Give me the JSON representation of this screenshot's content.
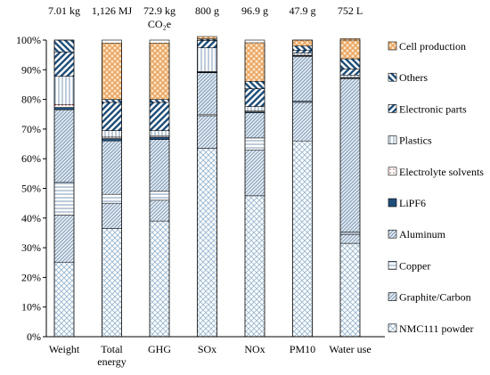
{
  "chart_data": {
    "type": "bar",
    "stacked": true,
    "stack_mode": "percent",
    "categories": [
      "Weight",
      "Total energy",
      "GHG",
      "SOx",
      "NOx",
      "PM10",
      "Water use"
    ],
    "category_labels": [
      [
        "Weight"
      ],
      [
        "Total",
        "energy"
      ],
      [
        "GHG"
      ],
      [
        "SOx"
      ],
      [
        "NOx"
      ],
      [
        "PM10"
      ],
      [
        "Water use"
      ]
    ],
    "totals": [
      "7.01 kg",
      "1,126 MJ",
      "72.9 kg CO₂e",
      "800 g",
      "96.9 g",
      "47.9 g",
      "752 L"
    ],
    "y_ticks": [
      "0%",
      "10%",
      "20%",
      "30%",
      "40%",
      "50%",
      "60%",
      "70%",
      "80%",
      "90%",
      "100%"
    ],
    "ylim": [
      0,
      100
    ],
    "grid": false,
    "legend_position": "right",
    "series": [
      {
        "name": "NMC111 powder",
        "pattern": "cross",
        "color": "#9ab7cf",
        "values": [
          25.0,
          36.5,
          39.0,
          63.5,
          47.5,
          66.0,
          31.5
        ]
      },
      {
        "name": "Graphite/Carbon",
        "pattern": "diag-dense",
        "color": "#9ab7cf",
        "values": [
          16.0,
          8.5,
          7.0,
          11.0,
          15.5,
          13.0,
          3.0
        ]
      },
      {
        "name": "Copper",
        "pattern": "hlines",
        "color": "#6f8fae",
        "values": [
          11.0,
          3.0,
          3.0,
          0.5,
          4.0,
          0.5,
          0.8
        ]
      },
      {
        "name": "Aluminum",
        "pattern": "diag-fine",
        "color": "#6f8fae",
        "values": [
          24.5,
          18.0,
          17.5,
          14.0,
          8.5,
          15.0,
          51.7
        ]
      },
      {
        "name": "LiPF6",
        "pattern": "solid",
        "color": "#1f4e79",
        "values": [
          0.8,
          0.8,
          0.8,
          0.2,
          0.3,
          0.2,
          0.2
        ]
      },
      {
        "name": "Electrolyte solvents",
        "pattern": "dots",
        "color": "#c0504d",
        "values": [
          1.0,
          0.5,
          0.5,
          0.2,
          0.3,
          0.2,
          0.2
        ]
      },
      {
        "name": "Plastics",
        "pattern": "vlines",
        "color": "#6f8fae",
        "values": [
          9.5,
          2.2,
          1.7,
          8.0,
          1.5,
          0.8,
          0.8
        ]
      },
      {
        "name": "Electronic parts",
        "pattern": "wide-diag",
        "color": "#1f4e79",
        "values": [
          8.2,
          9.5,
          9.5,
          2.5,
          6.0,
          0.9,
          2.0
        ]
      },
      {
        "name": "Others",
        "pattern": "back-diag",
        "color": "#1f4e79",
        "values": [
          4.0,
          1.0,
          1.0,
          0.5,
          2.5,
          1.4,
          3.5
        ]
      },
      {
        "name": "Cell production",
        "pattern": "checker",
        "color": "#e8a25a",
        "values": [
          0.0,
          19.0,
          19.0,
          0.8,
          13.0,
          2.0,
          6.8
        ]
      }
    ]
  }
}
